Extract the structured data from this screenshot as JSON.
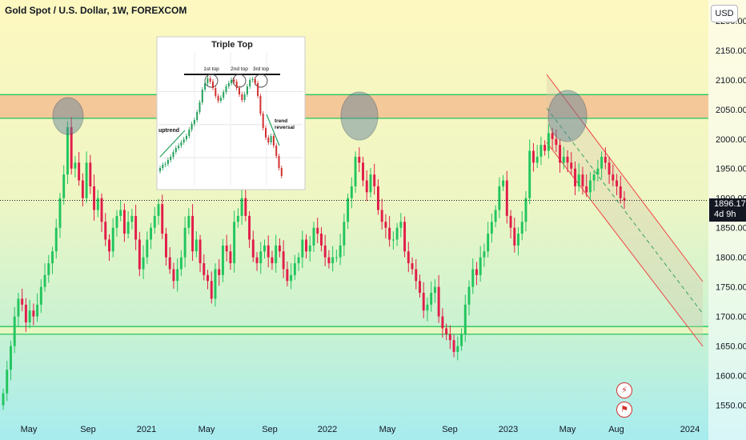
{
  "title": "Gold Spot / U.S. Dollar, 1W, FOREXCOM",
  "currency": "USD",
  "price_badge": {
    "price": "1896.17",
    "countdown": "4d 9h"
  },
  "inset": {
    "title": "Triple Top",
    "labels": [
      "1st top",
      "2nd top",
      "3rd top",
      "uptrend",
      "trend",
      "reversal"
    ]
  },
  "icons": [
    "flash-icon",
    "flag-icon"
  ],
  "colors": {
    "bull": "#26a69a",
    "bull_bright": "#22c55e",
    "bear": "#e11d48",
    "zone_fill": "#f3b88b",
    "zone_line": "#22c55e",
    "channel": "#ef4444"
  },
  "chart_data": {
    "type": "candlestick",
    "symbol": "Gold Spot / U.S. Dollar",
    "interval": "1W",
    "x_ticks": [
      "May",
      "Sep",
      "2021",
      "May",
      "Sep",
      "2022",
      "May",
      "Sep",
      "2023",
      "May",
      "Aug",
      "2024"
    ],
    "y_ticks": [
      2200,
      2150,
      2100,
      2050,
      2000,
      1950,
      1900,
      1850,
      1800,
      1750,
      1700,
      1650,
      1600,
      1550
    ],
    "ylim": [
      1525,
      2235
    ],
    "last_price": 1896.17,
    "resistance_zone": [
      2035,
      2075
    ],
    "support_zone": [
      1670,
      1683
    ],
    "closes": [
      1570,
      1610,
      1650,
      1700,
      1730,
      1720,
      1690,
      1710,
      1700,
      1720,
      1750,
      1770,
      1790,
      1810,
      1850,
      1900,
      1940,
      2020,
      1950,
      1960,
      1930,
      1900,
      1960,
      1920,
      1880,
      1900,
      1860,
      1830,
      1810,
      1850,
      1870,
      1880,
      1840,
      1860,
      1870,
      1830,
      1780,
      1800,
      1830,
      1850,
      1870,
      1890,
      1840,
      1800,
      1780,
      1760,
      1780,
      1800,
      1850,
      1870,
      1810,
      1830,
      1790,
      1770,
      1760,
      1730,
      1780,
      1770,
      1820,
      1810,
      1790,
      1860,
      1870,
      1900,
      1870,
      1830,
      1800,
      1790,
      1810,
      1820,
      1800,
      1790,
      1820,
      1810,
      1780,
      1760,
      1770,
      1790,
      1800,
      1830,
      1810,
      1820,
      1850,
      1840,
      1820,
      1800,
      1790,
      1800,
      1800,
      1820,
      1860,
      1900,
      1920,
      1970,
      1960,
      1930,
      1910,
      1940,
      1920,
      1880,
      1860,
      1850,
      1830,
      1830,
      1850,
      1860,
      1810,
      1790,
      1780,
      1760,
      1740,
      1710,
      1720,
      1740,
      1750,
      1700,
      1680,
      1670,
      1660,
      1640,
      1650,
      1670,
      1720,
      1750,
      1780,
      1770,
      1800,
      1810,
      1840,
      1860,
      1880,
      1920,
      1930,
      1870,
      1850,
      1820,
      1840,
      1860,
      1900,
      1980,
      1960,
      1970,
      1990,
      1980,
      2010,
      2000,
      1990,
      1960,
      1970,
      1960,
      1950,
      1920,
      1940,
      1920,
      1910,
      1930,
      1940,
      1950,
      1970,
      1960,
      1940,
      1930,
      1920,
      1900,
      1896.17
    ]
  }
}
